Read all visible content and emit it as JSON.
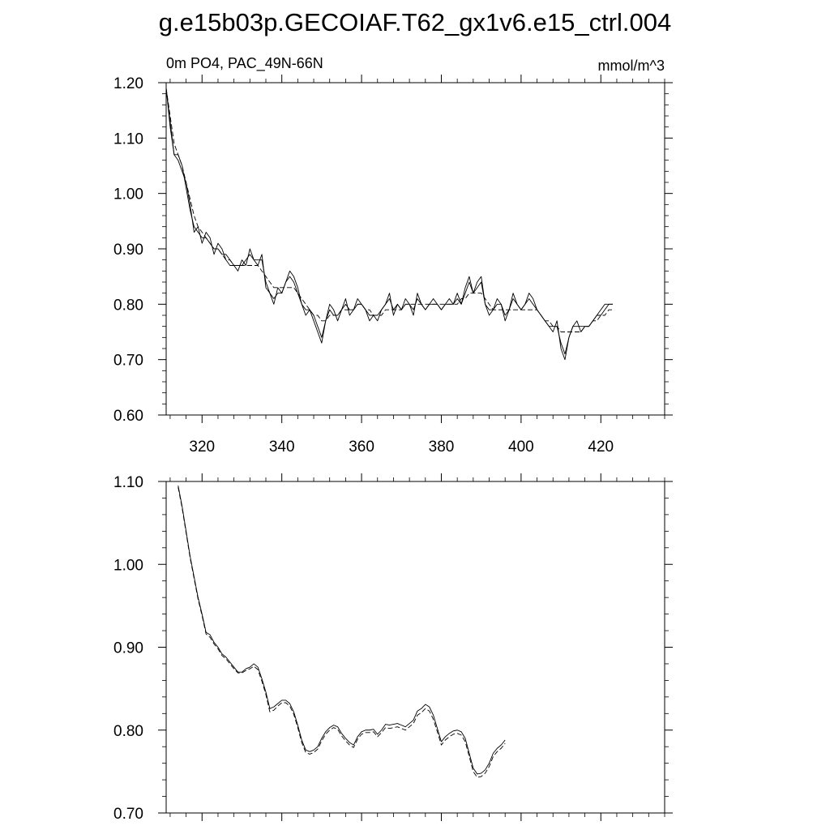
{
  "figure": {
    "title": "g.e15b03p.GECOIAF.T62_gx1v6.e15_ctrl.004"
  },
  "chart_data": [
    {
      "type": "line",
      "left_label": "0m PO4, PAC_49N-66N",
      "right_label": "mmol/m^3",
      "xlim": [
        311,
        436
      ],
      "ylim": [
        0.6,
        1.2
      ],
      "x_ticks": [
        320,
        340,
        360,
        380,
        400,
        420
      ],
      "x_tick_labels": [
        "320",
        "340",
        "360",
        "380",
        "400",
        "420"
      ],
      "y_ticks": [
        0.6,
        0.7,
        0.8,
        0.9,
        1.0,
        1.1,
        1.2
      ],
      "y_tick_labels": [
        "0.60",
        "0.70",
        "0.80",
        "0.90",
        "1.00",
        "1.10",
        "1.20"
      ],
      "grid": false,
      "series": [
        {
          "style": "solid",
          "x_start": 311,
          "values": [
            1.19,
            1.13,
            1.07,
            1.06,
            1.04,
            1.02,
            0.98,
            0.93,
            0.94,
            0.91,
            0.93,
            0.92,
            0.89,
            0.91,
            0.9,
            0.88,
            0.87,
            0.87,
            0.86,
            0.88,
            0.87,
            0.9,
            0.88,
            0.87,
            0.89,
            0.83,
            0.82,
            0.8,
            0.83,
            0.82,
            0.84,
            0.86,
            0.85,
            0.83,
            0.8,
            0.78,
            0.79,
            0.77,
            0.75,
            0.73,
            0.77,
            0.8,
            0.79,
            0.77,
            0.79,
            0.81,
            0.78,
            0.79,
            0.81,
            0.8,
            0.79,
            0.77,
            0.78,
            0.77,
            0.79,
            0.8,
            0.82,
            0.78,
            0.8,
            0.79,
            0.81,
            0.8,
            0.78,
            0.82,
            0.8,
            0.79,
            0.8,
            0.81,
            0.8,
            0.79,
            0.8,
            0.81,
            0.8,
            0.82,
            0.8,
            0.83,
            0.85,
            0.82,
            0.84,
            0.85,
            0.8,
            0.78,
            0.79,
            0.81,
            0.8,
            0.77,
            0.79,
            0.82,
            0.8,
            0.79,
            0.8,
            0.82,
            0.81,
            0.79,
            0.78,
            0.77,
            0.76,
            0.75,
            0.77,
            0.72,
            0.7,
            0.74,
            0.76,
            0.77,
            0.75,
            0.76,
            0.76,
            0.77,
            0.78,
            0.79,
            0.8,
            0.8,
            0.8
          ]
        },
        {
          "style": "solid",
          "x_start": 311,
          "values": [
            1.19,
            1.12,
            1.07,
            1.07,
            1.05,
            1.01,
            0.97,
            0.94,
            0.93,
            0.92,
            0.92,
            0.91,
            0.9,
            0.9,
            0.89,
            0.89,
            0.88,
            0.87,
            0.87,
            0.87,
            0.88,
            0.89,
            0.88,
            0.88,
            0.88,
            0.84,
            0.82,
            0.81,
            0.82,
            0.82,
            0.84,
            0.85,
            0.84,
            0.82,
            0.8,
            0.79,
            0.79,
            0.78,
            0.76,
            0.74,
            0.77,
            0.79,
            0.78,
            0.78,
            0.79,
            0.8,
            0.79,
            0.79,
            0.8,
            0.8,
            0.79,
            0.78,
            0.78,
            0.78,
            0.79,
            0.8,
            0.81,
            0.79,
            0.8,
            0.79,
            0.8,
            0.8,
            0.79,
            0.81,
            0.8,
            0.79,
            0.8,
            0.8,
            0.8,
            0.79,
            0.8,
            0.8,
            0.8,
            0.81,
            0.8,
            0.82,
            0.84,
            0.82,
            0.83,
            0.84,
            0.8,
            0.79,
            0.79,
            0.8,
            0.8,
            0.78,
            0.79,
            0.81,
            0.8,
            0.79,
            0.8,
            0.81,
            0.8,
            0.79,
            0.78,
            0.77,
            0.76,
            0.76,
            0.76,
            0.73,
            0.71,
            0.74,
            0.76,
            0.76,
            0.76,
            0.76,
            0.76,
            0.77,
            0.78,
            0.78,
            0.79,
            0.8,
            0.8
          ]
        },
        {
          "style": "dashed",
          "x_start": 311,
          "values": [
            1.19,
            1.14,
            1.09,
            1.07,
            1.05,
            1.02,
            0.99,
            0.96,
            0.94,
            0.93,
            0.92,
            0.91,
            0.9,
            0.9,
            0.89,
            0.88,
            0.88,
            0.87,
            0.87,
            0.87,
            0.87,
            0.87,
            0.87,
            0.87,
            0.86,
            0.85,
            0.84,
            0.83,
            0.83,
            0.83,
            0.83,
            0.83,
            0.83,
            0.82,
            0.81,
            0.8,
            0.79,
            0.78,
            0.78,
            0.77,
            0.77,
            0.78,
            0.78,
            0.78,
            0.79,
            0.79,
            0.79,
            0.79,
            0.8,
            0.8,
            0.79,
            0.79,
            0.78,
            0.78,
            0.78,
            0.79,
            0.79,
            0.79,
            0.79,
            0.79,
            0.8,
            0.8,
            0.8,
            0.8,
            0.8,
            0.8,
            0.8,
            0.8,
            0.8,
            0.8,
            0.8,
            0.8,
            0.8,
            0.8,
            0.81,
            0.81,
            0.82,
            0.82,
            0.82,
            0.82,
            0.81,
            0.8,
            0.79,
            0.79,
            0.79,
            0.79,
            0.79,
            0.79,
            0.79,
            0.79,
            0.79,
            0.79,
            0.79,
            0.79,
            0.78,
            0.77,
            0.77,
            0.76,
            0.76,
            0.75,
            0.75,
            0.75,
            0.75,
            0.75,
            0.75,
            0.76,
            0.76,
            0.77,
            0.77,
            0.78,
            0.78,
            0.79,
            0.79
          ]
        }
      ]
    },
    {
      "type": "line",
      "xlim": [
        311,
        436
      ],
      "ylim": [
        0.7,
        1.1
      ],
      "x_ticks": [
        320,
        340,
        360,
        380,
        400,
        420
      ],
      "x_tick_labels": [],
      "y_ticks": [
        0.7,
        0.8,
        0.9,
        1.0,
        1.1
      ],
      "y_tick_labels": [
        "0.70",
        "0.80",
        "0.90",
        "1.00",
        "1.10"
      ],
      "grid": false,
      "series": [
        {
          "style": "solid",
          "x_start": 314,
          "values": [
            1.095,
            1.07,
            1.04,
            1.01,
            0.985,
            0.96,
            0.94,
            0.918,
            0.915,
            0.906,
            0.9,
            0.892,
            0.888,
            0.882,
            0.876,
            0.87,
            0.87,
            0.874,
            0.876,
            0.88,
            0.876,
            0.862,
            0.846,
            0.826,
            0.828,
            0.832,
            0.836,
            0.836,
            0.832,
            0.822,
            0.806,
            0.788,
            0.776,
            0.774,
            0.776,
            0.78,
            0.79,
            0.798,
            0.803,
            0.806,
            0.804,
            0.796,
            0.79,
            0.785,
            0.782,
            0.792,
            0.798,
            0.8,
            0.8,
            0.801,
            0.795,
            0.8,
            0.807,
            0.806,
            0.807,
            0.808,
            0.806,
            0.804,
            0.808,
            0.812,
            0.823,
            0.826,
            0.831,
            0.828,
            0.818,
            0.802,
            0.786,
            0.792,
            0.796,
            0.799,
            0.8,
            0.798,
            0.79,
            0.772,
            0.754,
            0.747,
            0.748,
            0.752,
            0.76,
            0.772,
            0.778,
            0.782,
            0.788
          ]
        },
        {
          "style": "dashed",
          "x_start": 314,
          "values": [
            1.093,
            1.068,
            1.038,
            1.008,
            0.983,
            0.958,
            0.938,
            0.916,
            0.912,
            0.904,
            0.898,
            0.89,
            0.886,
            0.88,
            0.874,
            0.869,
            0.869,
            0.872,
            0.874,
            0.877,
            0.873,
            0.859,
            0.843,
            0.822,
            0.824,
            0.829,
            0.833,
            0.833,
            0.829,
            0.819,
            0.803,
            0.785,
            0.773,
            0.771,
            0.773,
            0.777,
            0.787,
            0.795,
            0.8,
            0.803,
            0.801,
            0.793,
            0.787,
            0.782,
            0.779,
            0.789,
            0.795,
            0.797,
            0.797,
            0.798,
            0.792,
            0.797,
            0.803,
            0.802,
            0.803,
            0.804,
            0.802,
            0.8,
            0.804,
            0.808,
            0.818,
            0.821,
            0.826,
            0.823,
            0.813,
            0.798,
            0.782,
            0.788,
            0.792,
            0.795,
            0.796,
            0.794,
            0.786,
            0.768,
            0.75,
            0.743,
            0.744,
            0.748,
            0.756,
            0.768,
            0.774,
            0.778,
            0.784
          ]
        }
      ]
    }
  ]
}
